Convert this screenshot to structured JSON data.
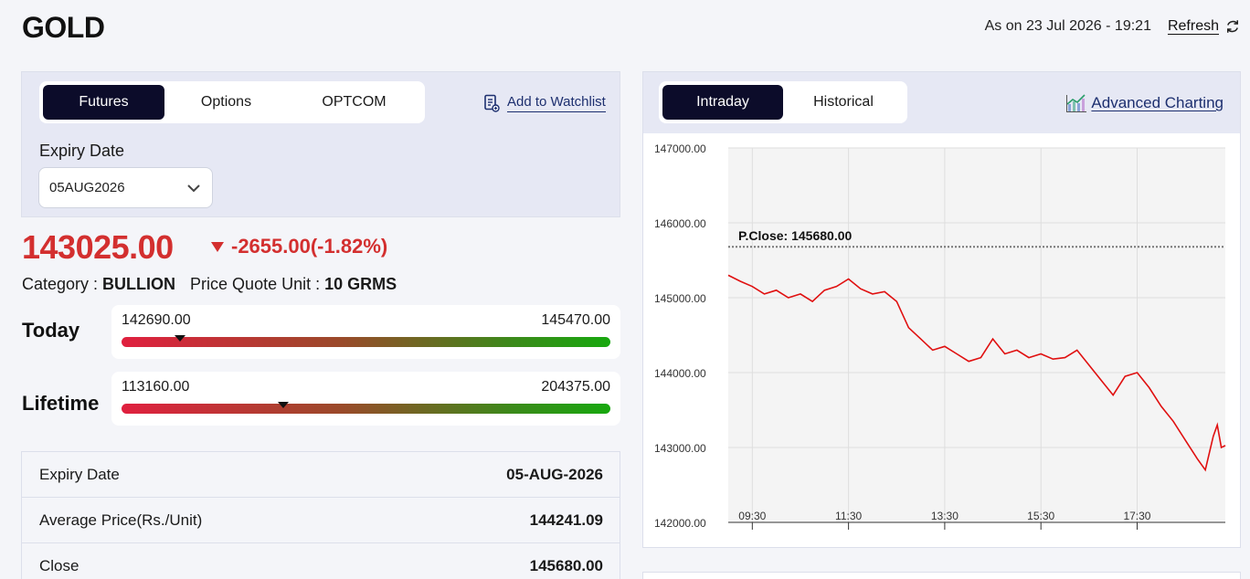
{
  "header": {
    "title": "GOLD",
    "as_on": "As on 23 Jul 2026 - 19:21",
    "refresh_label": "Refresh"
  },
  "left": {
    "tabs": [
      {
        "label": "Futures",
        "active": true
      },
      {
        "label": "Options",
        "active": false
      },
      {
        "label": "OPTCOM",
        "active": false
      }
    ],
    "watchlist_label": "Add to Watchlist",
    "expiry_label": "Expiry Date",
    "expiry_value": "05AUG2026",
    "price": "143025.00",
    "change": "-2655.00(-1.82%)",
    "category_label": "Category : ",
    "category_value": "BULLION",
    "unit_label": "Price Quote Unit : ",
    "unit_value": "10 GRMS",
    "today": {
      "label": "Today",
      "low": "142690.00",
      "high": "145470.00",
      "position": 0.12
    },
    "lifetime": {
      "label": "Lifetime",
      "low": "113160.00",
      "high": "204375.00",
      "position": 0.33
    },
    "details": [
      {
        "label": "Expiry Date",
        "value": "05-AUG-2026"
      },
      {
        "label": "Average Price(Rs./Unit)",
        "value": "144241.09"
      },
      {
        "label": "Close",
        "value": "145680.00"
      }
    ]
  },
  "right": {
    "tabs": [
      {
        "label": "Intraday",
        "active": true
      },
      {
        "label": "Historical",
        "active": false
      }
    ],
    "advanced_label": "Advanced Charting"
  },
  "chart_data": {
    "type": "line",
    "y_ticks": [
      "147000.00",
      "146000.00",
      "145000.00",
      "144000.00",
      "143000.00",
      "142000.00"
    ],
    "x_ticks": [
      "09:30",
      "11:30",
      "13:30",
      "15:30",
      "17:30"
    ],
    "ylim": [
      142000,
      147000
    ],
    "xlim": [
      "09:00",
      "19:20"
    ],
    "reference_line": {
      "label": "P.Close: 145680.00",
      "value": 145680
    },
    "line_color": "#e01010",
    "series": [
      {
        "x": [
          "09:00",
          "09:15",
          "09:30",
          "09:45",
          "10:00",
          "10:15",
          "10:30",
          "10:45",
          "11:00",
          "11:15",
          "11:30",
          "11:45",
          "12:00",
          "12:15",
          "12:30",
          "12:45",
          "13:00",
          "13:15",
          "13:30",
          "13:45",
          "14:00",
          "14:15",
          "14:30",
          "14:45",
          "15:00",
          "15:15",
          "15:30",
          "15:45",
          "16:00",
          "16:15",
          "16:30",
          "16:45",
          "17:00",
          "17:15",
          "17:30",
          "17:45",
          "18:00",
          "18:15",
          "18:30",
          "18:45",
          "18:55",
          "19:05",
          "19:10",
          "19:15",
          "19:20"
        ],
        "values": [
          145300,
          145220,
          145150,
          145050,
          145100,
          145000,
          145050,
          144950,
          145100,
          145150,
          145250,
          145120,
          145050,
          145080,
          144950,
          144600,
          144450,
          144300,
          144350,
          144250,
          144150,
          144200,
          144450,
          144250,
          144300,
          144200,
          144250,
          144180,
          144200,
          144300,
          144100,
          143900,
          143700,
          143950,
          144000,
          143800,
          143550,
          143350,
          143100,
          142850,
          142700,
          143150,
          143300,
          143000,
          143025
        ]
      }
    ]
  }
}
